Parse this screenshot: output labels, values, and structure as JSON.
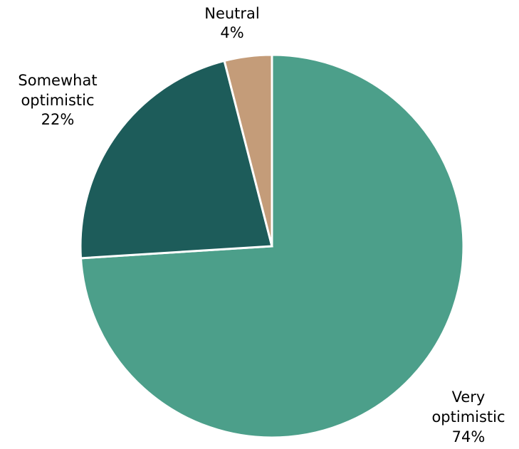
{
  "chart_data": {
    "type": "pie",
    "title": "",
    "slices": [
      {
        "label_lines": [
          "Very",
          "optimistic"
        ],
        "percent_label": "74%",
        "value": 74,
        "color": "#4c9f8a"
      },
      {
        "label_lines": [
          "Somewhat",
          "optimistic"
        ],
        "percent_label": "22%",
        "value": 22,
        "color": "#1d5c5a"
      },
      {
        "label_lines": [
          "Neutral"
        ],
        "percent_label": "4%",
        "value": 4,
        "color": "#c49c79"
      }
    ],
    "start_angle": "12 o'clock",
    "direction": "clockwise",
    "legend": "none (labels placed outside slices)"
  }
}
